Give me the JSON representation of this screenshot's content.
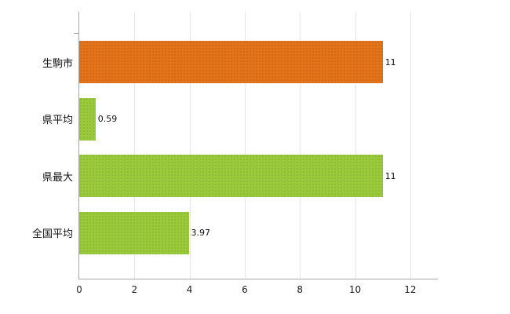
{
  "chart_data": {
    "type": "bar",
    "orientation": "horizontal",
    "title": "",
    "xlabel": "",
    "ylabel": "",
    "categories": [
      "生駒市",
      "県平均",
      "県最大",
      "全国平均"
    ],
    "values": [
      11,
      0.59,
      11,
      3.97
    ],
    "value_labels": [
      "11",
      "0.59",
      "11",
      "3.97"
    ],
    "bar_colors": [
      "#e2731b",
      "#9aca3b",
      "#9aca3b",
      "#9aca3b"
    ],
    "x_ticks": [
      0,
      2,
      4,
      6,
      8,
      10,
      12
    ],
    "xlim": [
      0,
      13
    ],
    "grid": true,
    "legend": false,
    "axis_color": "#a8a8a8",
    "grid_color": "#e6e6e6",
    "text_color": "#111111",
    "background_color": "#ffffff"
  }
}
